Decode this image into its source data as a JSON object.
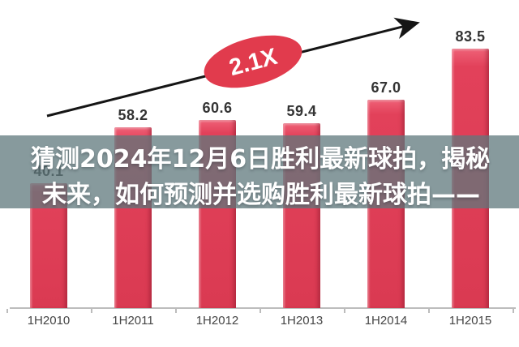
{
  "chart_data": {
    "type": "bar",
    "title": "",
    "categories": [
      "1H2010",
      "1H2011",
      "1H2012",
      "1H2013",
      "1H2014",
      "1H2015"
    ],
    "values": [
      40.1,
      58.2,
      60.6,
      59.4,
      67.0,
      83.5
    ],
    "value_labels": [
      "40.1",
      "58.2",
      "60.6",
      "59.4",
      "67.0",
      "83.5"
    ],
    "xlabel": "",
    "ylabel": "",
    "ylim": [
      0,
      90
    ],
    "grid": false,
    "legend": false,
    "bar_color": "#e2415a",
    "annotation_label": "2.1X",
    "annotation_color": "#e13b4d",
    "trend_note": "black arrow rising from first bar toward last bar, passing through the 2.1X badge"
  },
  "overlay": {
    "line1": "猜测2024年12月6日胜利最新球拍，揭秘",
    "line2": "未来，如何预测并选购胜利最新球拍——",
    "background": "rgba(95,120,124,0.75)",
    "text_color": "#ffffff"
  }
}
